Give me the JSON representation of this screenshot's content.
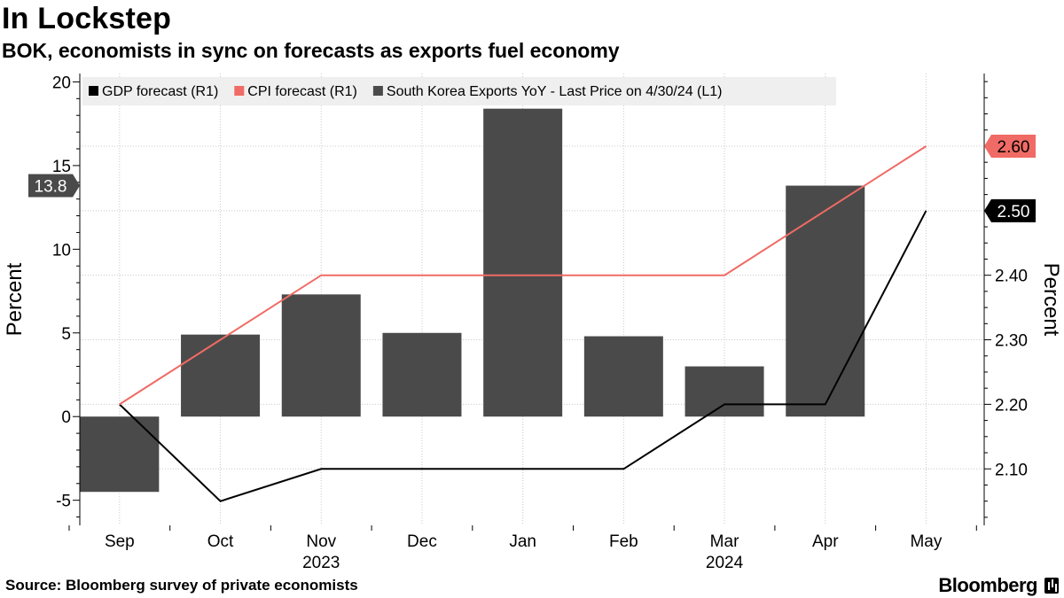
{
  "header": {
    "title": "In Lockstep",
    "subtitle": "BOK, economists in sync on forecasts as exports fuel economy"
  },
  "footer": {
    "source": "Source: Bloomberg survey of private economists",
    "brand": "Bloomberg"
  },
  "chart_data": {
    "type": "bar",
    "categories": [
      "Sep",
      "Oct",
      "Nov",
      "Dec",
      "Jan",
      "Feb",
      "Mar",
      "Apr",
      "May"
    ],
    "year_labels": [
      {
        "category": "Nov",
        "label": "2023"
      },
      {
        "category": "Mar",
        "label": "2024"
      }
    ],
    "series": [
      {
        "name": "South Korea Exports YoY - Last Price on 4/30/24 (L1)",
        "kind": "bar",
        "axis": "left",
        "color": "#4a4a4a",
        "values": [
          -4.5,
          4.9,
          7.3,
          5.0,
          18.4,
          4.8,
          3.0,
          13.8,
          null
        ]
      },
      {
        "name": "GDP forecast (R1)",
        "kind": "line",
        "axis": "right",
        "color": "#000000",
        "values": [
          2.2,
          2.05,
          2.1,
          2.1,
          2.1,
          2.1,
          2.2,
          2.2,
          2.5
        ]
      },
      {
        "name": "CPI forecast (R1)",
        "kind": "line",
        "axis": "right",
        "color": "#f06b65",
        "values": [
          2.2,
          2.3,
          2.4,
          2.4,
          2.4,
          2.4,
          2.4,
          2.5,
          2.6
        ]
      }
    ],
    "legend": [
      {
        "label": "GDP forecast (R1)",
        "color": "#000000"
      },
      {
        "label": "CPI forecast (R1)",
        "color": "#f06b65"
      },
      {
        "label": "South Korea Exports YoY - Last Price on 4/30/24 (L1)",
        "color": "#4a4a4a"
      }
    ],
    "left_axis": {
      "label": "Percent",
      "min": -6.5,
      "max": 20.5,
      "ticks": [
        -5,
        0,
        5,
        10,
        15,
        20
      ],
      "tick_labels": [
        "-5",
        "0",
        "5",
        "10",
        "15",
        "20"
      ]
    },
    "right_axis": {
      "label": "Percent",
      "min": 2.0125,
      "max": 2.7125,
      "ticks": [
        2.1,
        2.2,
        2.3,
        2.4,
        2.5,
        2.6
      ],
      "tick_labels": [
        "2.10",
        "2.20",
        "2.30",
        "2.40",
        "2.50",
        "2.60"
      ]
    },
    "callouts": [
      {
        "axis": "left",
        "value": 13.8,
        "text": "13.8",
        "color": "#4a4a4a",
        "text_color": "#ffffff"
      },
      {
        "axis": "right",
        "value": 2.5,
        "text": "2.50",
        "color": "#000000",
        "text_color": "#ffffff"
      },
      {
        "axis": "right",
        "value": 2.6,
        "text": "2.60",
        "color": "#f06b65",
        "text_color": "#000000"
      }
    ],
    "grid": true
  }
}
